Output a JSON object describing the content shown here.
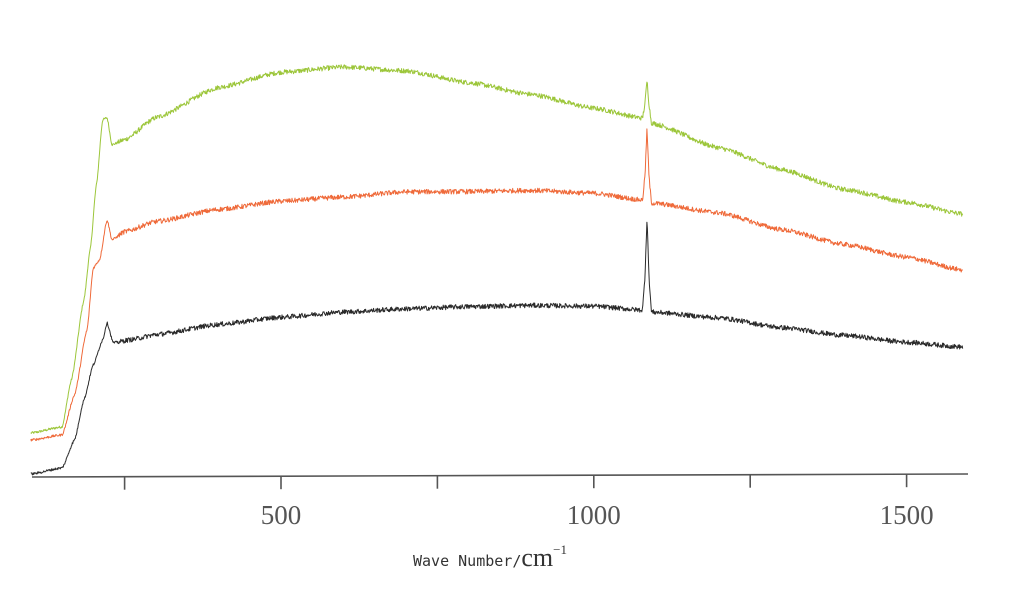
{
  "chart_data": {
    "type": "line",
    "title": "",
    "xlabel": "Wave Number/cm⁻¹",
    "xlabel_main": "Wave Number/",
    "xlabel_unit": "cm",
    "xlabel_sup": "−1",
    "ylabel": "",
    "xlim": [
      100,
      1600
    ],
    "ylim": [
      0,
      420
    ],
    "grid": false,
    "legend": "none",
    "x_ticks": [
      250,
      500,
      750,
      1000,
      1250,
      1500
    ],
    "x_tick_labels": [
      {
        "value": 500,
        "label": "500"
      },
      {
        "value": 1000,
        "label": "1000"
      },
      {
        "value": 1500,
        "label": "1500"
      }
    ],
    "annotations": [
      {
        "type": "sharp-peak",
        "x": 1085,
        "note": "common Raman band in all three spectra"
      }
    ],
    "series": [
      {
        "name": "top spectrum (green)",
        "color": "#9cc63a",
        "points": [
          [
            100,
            44
          ],
          [
            150,
            50
          ],
          [
            165,
            97
          ],
          [
            185,
            177
          ],
          [
            195,
            227
          ],
          [
            205,
            292
          ],
          [
            215,
            357
          ],
          [
            222,
            359
          ],
          [
            230,
            332
          ],
          [
            250,
            337
          ],
          [
            300,
            359
          ],
          [
            400,
            389
          ],
          [
            500,
            404
          ],
          [
            600,
            409
          ],
          [
            700,
            405
          ],
          [
            800,
            393
          ],
          [
            900,
            381
          ],
          [
            1000,
            367
          ],
          [
            1078,
            357
          ],
          [
            1082,
            372
          ],
          [
            1085,
            395
          ],
          [
            1088,
            372
          ],
          [
            1092,
            352
          ],
          [
            1200,
            327
          ],
          [
            1300,
            305
          ],
          [
            1400,
            285
          ],
          [
            1500,
            272
          ],
          [
            1590,
            260
          ]
        ]
      },
      {
        "name": "middle spectrum (orange)",
        "color": "#ef6a3a",
        "points": [
          [
            100,
            37
          ],
          [
            150,
            42
          ],
          [
            170,
            82
          ],
          [
            190,
            147
          ],
          [
            200,
            209
          ],
          [
            210,
            217
          ],
          [
            222,
            257
          ],
          [
            230,
            237
          ],
          [
            250,
            245
          ],
          [
            300,
            255
          ],
          [
            400,
            267
          ],
          [
            500,
            275
          ],
          [
            600,
            279
          ],
          [
            700,
            284
          ],
          [
            800,
            284
          ],
          [
            900,
            285
          ],
          [
            1000,
            282
          ],
          [
            1078,
            275
          ],
          [
            1082,
            300
          ],
          [
            1085,
            347
          ],
          [
            1088,
            300
          ],
          [
            1092,
            272
          ],
          [
            1200,
            262
          ],
          [
            1300,
            245
          ],
          [
            1400,
            230
          ],
          [
            1500,
            217
          ],
          [
            1590,
            204
          ]
        ]
      },
      {
        "name": "bottom spectrum (black)",
        "color": "#2a2a2a",
        "points": [
          [
            100,
            3
          ],
          [
            150,
            9
          ],
          [
            170,
            37
          ],
          [
            185,
            77
          ],
          [
            200,
            112
          ],
          [
            215,
            137
          ],
          [
            222,
            154
          ],
          [
            232,
            134
          ],
          [
            260,
            137
          ],
          [
            300,
            142
          ],
          [
            400,
            152
          ],
          [
            500,
            159
          ],
          [
            600,
            164
          ],
          [
            700,
            167
          ],
          [
            800,
            169
          ],
          [
            900,
            170
          ],
          [
            1000,
            169
          ],
          [
            1078,
            165
          ],
          [
            1082,
            200
          ],
          [
            1085,
            259
          ],
          [
            1088,
            200
          ],
          [
            1092,
            163
          ],
          [
            1200,
            157
          ],
          [
            1300,
            147
          ],
          [
            1400,
            139
          ],
          [
            1500,
            132
          ],
          [
            1590,
            127
          ]
        ]
      }
    ]
  }
}
